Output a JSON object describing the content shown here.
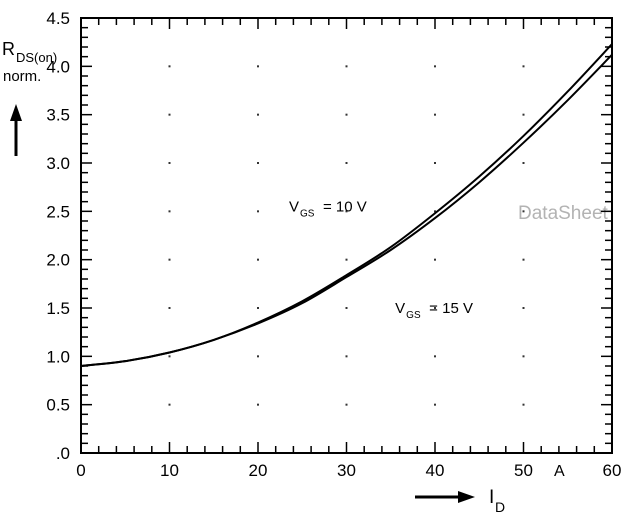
{
  "chart_data": {
    "type": "line",
    "title": "",
    "xlabel": {
      "symbol": "I",
      "subscript": "D",
      "unit": "A"
    },
    "ylabel": {
      "symbol": "R",
      "subscript": "DS(on)",
      "line2": "norm."
    },
    "xlim": [
      0,
      60
    ],
    "ylim": [
      0,
      4.5
    ],
    "x_ticks": [
      0,
      10,
      20,
      30,
      40,
      50,
      60
    ],
    "x_tick_labels": [
      "0",
      "10",
      "20",
      "30",
      "40",
      "50",
      "60"
    ],
    "y_ticks": [
      0,
      0.5,
      1.0,
      1.5,
      2.0,
      2.5,
      3.0,
      3.5,
      4.0,
      4.5
    ],
    "y_tick_labels": [
      ".0",
      "0.5",
      "1.0",
      "1.5",
      "2.0",
      "2.5",
      "3.0",
      "3.5",
      "4.0",
      "4.5"
    ],
    "grid": "dotted",
    "series": [
      {
        "x": [
          0,
          5,
          10,
          15,
          20,
          25,
          30,
          35,
          40,
          45,
          50,
          55,
          60
        ],
        "values": [
          0.9,
          0.95,
          1.04,
          1.17,
          1.35,
          1.57,
          1.84,
          2.13,
          2.48,
          2.86,
          3.28,
          3.74,
          4.23
        ]
      },
      {
        "x": [
          0,
          5,
          10,
          15,
          20,
          25,
          30,
          35,
          40,
          45,
          50,
          55,
          60
        ],
        "values": [
          0.9,
          0.95,
          1.04,
          1.17,
          1.34,
          1.55,
          1.82,
          2.1,
          2.43,
          2.8,
          3.21,
          3.65,
          4.12
        ]
      }
    ],
    "annotations": [
      {
        "symbol": "V",
        "subscript": "GS",
        "text": "= 10 V",
        "x": 23.5,
        "y": 2.5
      },
      {
        "symbol": "V",
        "subscript": "GS",
        "text": "= 15 V",
        "x": 35.5,
        "y": 1.45
      }
    ]
  },
  "watermark": "DataSheet"
}
